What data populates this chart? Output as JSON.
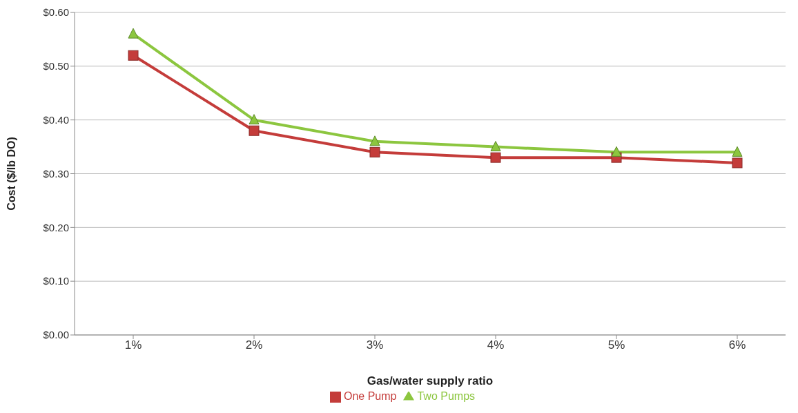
{
  "chart_data": {
    "type": "line",
    "xlabel": "Gas/water supply ratio",
    "ylabel": "Cost ($/lb DO)",
    "categories": [
      "1%",
      "2%",
      "3%",
      "4%",
      "5%",
      "6%"
    ],
    "series": [
      {
        "name": "One Pump",
        "color": "#c43c3a",
        "marker": "square",
        "values": [
          0.52,
          0.38,
          0.34,
          0.33,
          0.33,
          0.32
        ]
      },
      {
        "name": "Two Pumps",
        "color": "#8cc63f",
        "marker": "triangle",
        "values": [
          0.56,
          0.4,
          0.36,
          0.35,
          0.34,
          0.34
        ]
      }
    ],
    "ylim": [
      0,
      0.6
    ],
    "yticks": [
      {
        "value": 0,
        "label": "$0.00"
      },
      {
        "value": 0.1,
        "label": "$0.10"
      },
      {
        "value": 0.2,
        "label": "$0.20"
      },
      {
        "value": 0.3,
        "label": "$0.30"
      },
      {
        "value": 0.4,
        "label": "$0.40"
      },
      {
        "value": 0.5,
        "label": "$0.50"
      },
      {
        "value": 0.6,
        "label": "$0.60"
      }
    ],
    "grid": "y",
    "legend": "bottom"
  }
}
